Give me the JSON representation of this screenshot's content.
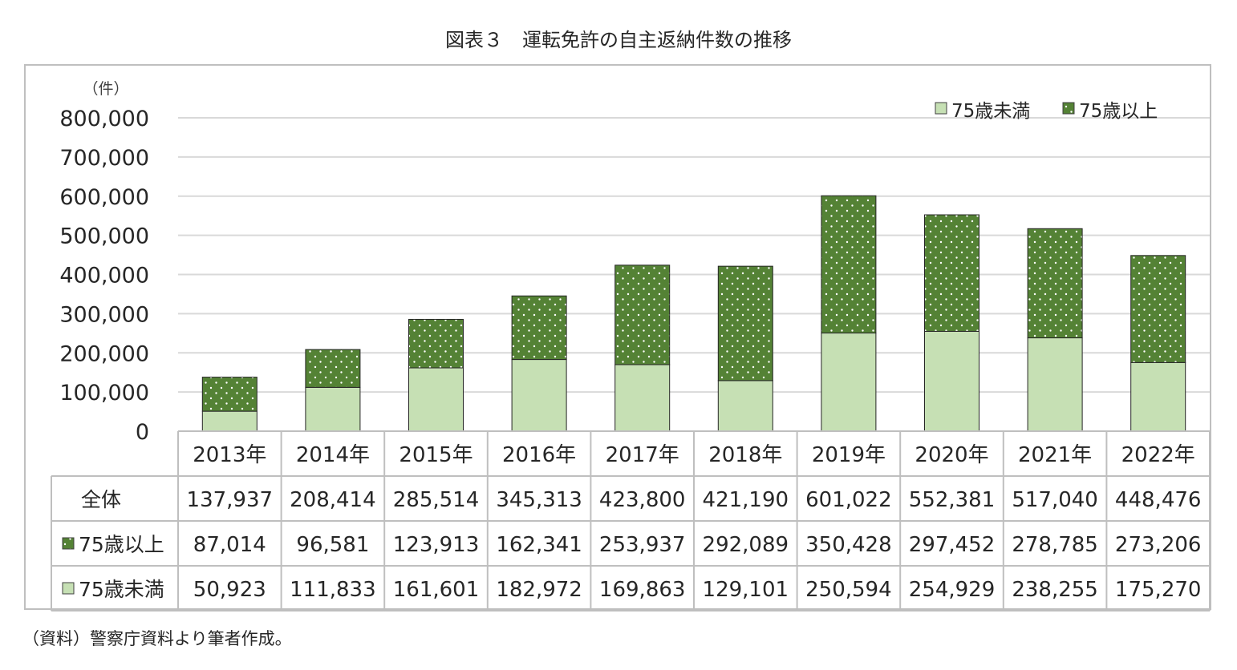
{
  "page_title": "図表３　運転免許の自主返納件数の推移",
  "source_note": "（資料）警察庁資料より筆者作成。",
  "colors": {
    "under75": "#c6e0b4",
    "over75": "#548235",
    "over75_dot": "#ffffff",
    "grid": "#d9d9d9",
    "border": "#bfbfbf",
    "text": "#262626"
  },
  "chart_data": {
    "type": "bar",
    "stacked": true,
    "title": "図表３　運転免許の自主返納件数の推移",
    "ylabel": "（件）",
    "ylim": [
      0,
      800000
    ],
    "yticks": [
      0,
      100000,
      200000,
      300000,
      400000,
      500000,
      600000,
      700000,
      800000
    ],
    "ytick_labels": [
      "0",
      "100,000",
      "200,000",
      "300,000",
      "400,000",
      "500,000",
      "600,000",
      "700,000",
      "800,000"
    ],
    "grid": true,
    "legend_position": "top-right",
    "categories": [
      "2013年",
      "2014年",
      "2015年",
      "2016年",
      "2017年",
      "2018年",
      "2019年",
      "2020年",
      "2021年",
      "2022年"
    ],
    "series": [
      {
        "name": "75歳未満",
        "values": [
          50923,
          111833,
          161601,
          182972,
          169863,
          129101,
          250594,
          254929,
          238255,
          175270
        ],
        "pattern": "solid"
      },
      {
        "name": "75歳以上",
        "values": [
          87014,
          96581,
          123913,
          162341,
          253937,
          292089,
          350428,
          297452,
          278785,
          273206
        ],
        "pattern": "dotted"
      }
    ],
    "table": {
      "row_labels": [
        "全体",
        "75歳以上",
        "75歳未満"
      ],
      "rows": [
        [
          "137,937",
          "208,414",
          "285,514",
          "345,313",
          "423,800",
          "421,190",
          "601,022",
          "552,381",
          "517,040",
          "448,476"
        ],
        [
          "87,014",
          "96,581",
          "123,913",
          "162,341",
          "253,937",
          "292,089",
          "350,428",
          "297,452",
          "278,785",
          "273,206"
        ],
        [
          "50,923",
          "111,833",
          "161,601",
          "182,972",
          "169,863",
          "129,101",
          "250,594",
          "254,929",
          "238,255",
          "175,270"
        ]
      ]
    }
  }
}
